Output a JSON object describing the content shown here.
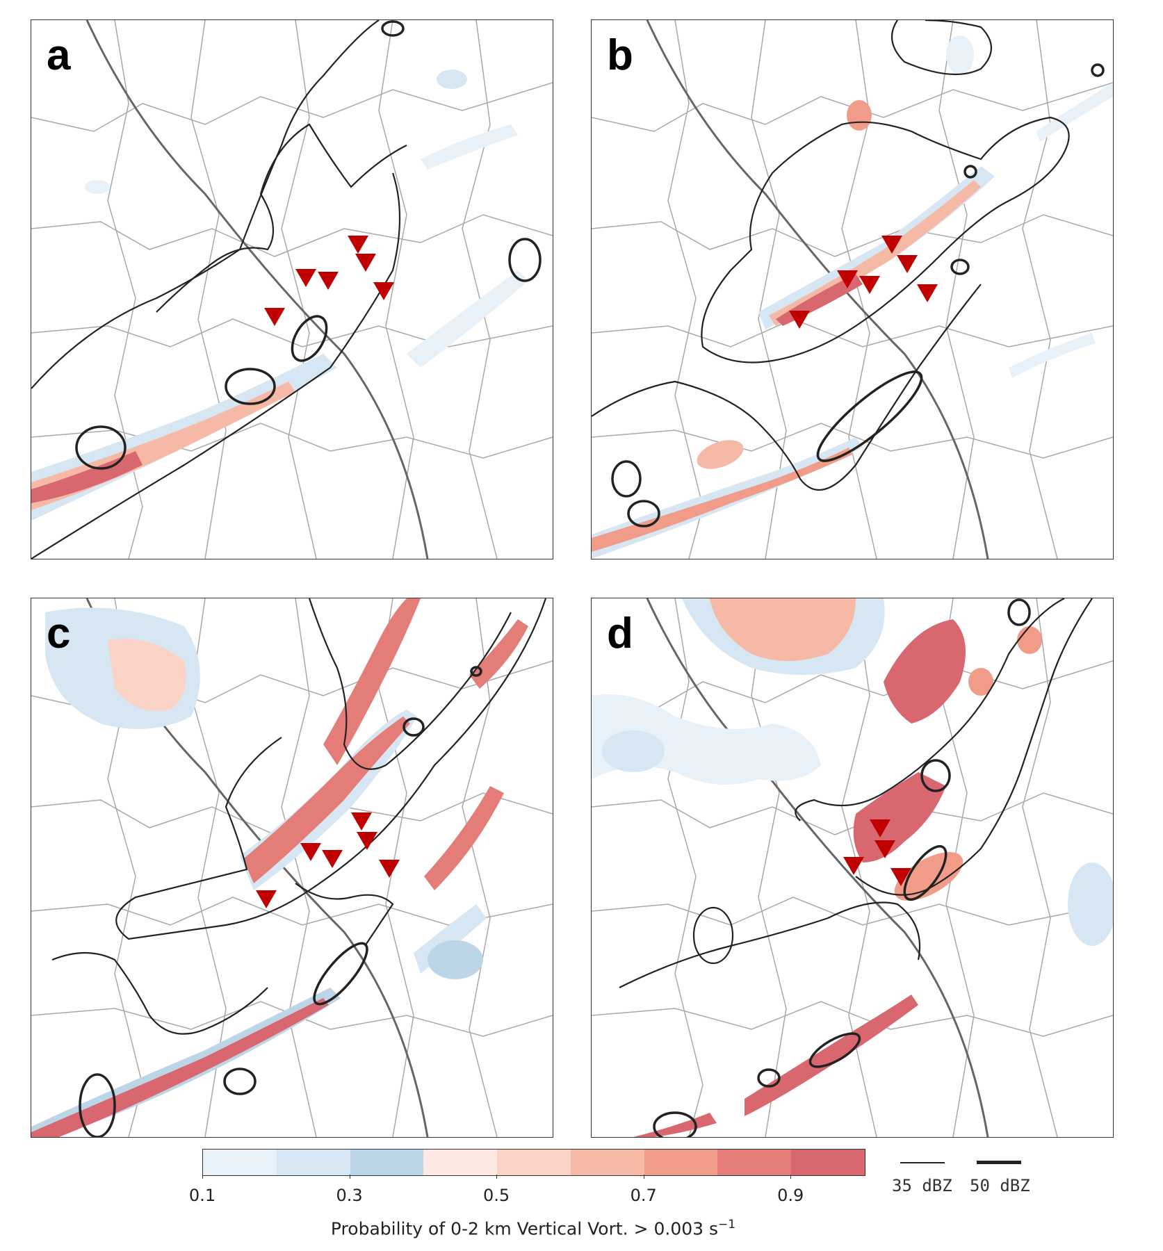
{
  "panels": [
    {
      "id": "a",
      "label": "a"
    },
    {
      "id": "b",
      "label": "b"
    },
    {
      "id": "c",
      "label": "c"
    },
    {
      "id": "d",
      "label": "d"
    }
  ],
  "colorbar": {
    "ticks": [
      "0.1",
      "0.3",
      "0.5",
      "0.7",
      "0.9"
    ],
    "title_main": "Probability of 0-2 km Vertical Vort. > 0.003 s",
    "title_sup": "−1",
    "colors": [
      "#e8f0f8",
      "#d6e6f2",
      "#bcd6e8",
      "#fde9e3",
      "#fbd3c6",
      "#f6b9a6",
      "#f09c89",
      "#e47c77",
      "#d86770"
    ]
  },
  "reflectivity_legend": {
    "thin_label": "35 dBZ",
    "thick_label": "50 dBZ"
  },
  "marker_color": "#c00000",
  "contour_color": "#222222",
  "boundary_color": "#9a9a9a",
  "state_line_color": "#666666"
}
